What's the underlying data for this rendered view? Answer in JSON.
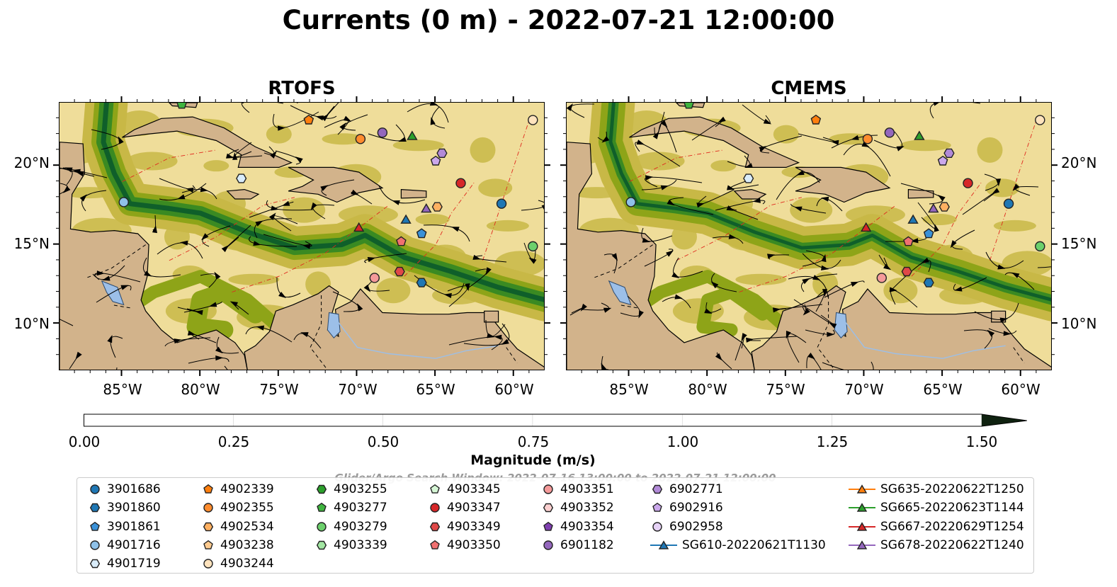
{
  "title": "Currents (0 m) - 2022-07-21 12:00:00",
  "panels": [
    {
      "title": "RTOFS"
    },
    {
      "title": "CMEMS"
    }
  ],
  "axes": {
    "x_ticks": [
      "85°W",
      "80°W",
      "75°W",
      "70°W",
      "65°W",
      "60°W"
    ],
    "y_ticks": [
      "20°N",
      "15°N",
      "10°N"
    ]
  },
  "chart_data": {
    "type": "map",
    "region": "Caribbean Sea",
    "lon_range": [
      -89,
      -58
    ],
    "lat_range": [
      7,
      24
    ],
    "fill_variable": "current speed",
    "overlays": [
      "streamlines",
      "bathymetry contours",
      "EEZ boundaries",
      "country borders"
    ]
  },
  "colorbar": {
    "label": "Magnitude (m/s)",
    "ticks": [
      "0.00",
      "0.25",
      "0.50",
      "0.75",
      "1.00",
      "1.25",
      "1.50"
    ],
    "colors": [
      "#efdd9a",
      "#c8b846",
      "#8ea418",
      "#3a8a22",
      "#0f5f2a",
      "#1c3a1e"
    ],
    "extend": "max"
  },
  "search_window": "Glider/Argo Search Window: 2022-07-16 13:00:00 to 2022-07-21 12:00:00",
  "legend": [
    {
      "label": "3901686",
      "marker": "circle",
      "color": "#1f77b4"
    },
    {
      "label": "3901860",
      "marker": "hexagon",
      "color": "#1f77b4"
    },
    {
      "label": "3901861",
      "marker": "pentagon",
      "color": "#3a91d8"
    },
    {
      "label": "4901716",
      "marker": "circle",
      "color": "#8fc1e8"
    },
    {
      "label": "4901719",
      "marker": "hexagon",
      "color": "#d9ecfa"
    },
    {
      "label": "4902339",
      "marker": "pentagon",
      "color": "#ff7f0e"
    },
    {
      "label": "4902355",
      "marker": "circle",
      "color": "#ff8c2e"
    },
    {
      "label": "4902534",
      "marker": "hexagon",
      "color": "#ffb061"
    },
    {
      "label": "4903238",
      "marker": "pentagon",
      "color": "#ffcb8f"
    },
    {
      "label": "4903244",
      "marker": "circle",
      "color": "#ffe3bd"
    },
    {
      "label": "4903255",
      "marker": "hexagon",
      "color": "#2ca02c"
    },
    {
      "label": "4903277",
      "marker": "pentagon",
      "color": "#3fb43f"
    },
    {
      "label": "4903279",
      "marker": "circle",
      "color": "#6cd06c"
    },
    {
      "label": "4903339",
      "marker": "hexagon",
      "color": "#a2e6a2"
    },
    {
      "label": "4903345",
      "marker": "pentagon",
      "color": "#d6f7d6"
    },
    {
      "label": "4903347",
      "marker": "circle",
      "color": "#d62728"
    },
    {
      "label": "4903349",
      "marker": "hexagon",
      "color": "#e04848"
    },
    {
      "label": "4903350",
      "marker": "pentagon",
      "color": "#f07070"
    },
    {
      "label": "4903351",
      "marker": "circle",
      "color": "#f59a9a"
    },
    {
      "label": "4903352",
      "marker": "hexagon",
      "color": "#fbd0d0"
    },
    {
      "label": "4903354",
      "marker": "pentagon",
      "color": "#7f3fb0"
    },
    {
      "label": "6901182",
      "marker": "circle",
      "color": "#9467bd"
    },
    {
      "label": "6902771",
      "marker": "hexagon",
      "color": "#b28ad8"
    },
    {
      "label": "6902916",
      "marker": "pentagon",
      "color": "#cba8ec"
    },
    {
      "label": "6902958",
      "marker": "circle",
      "color": "#e6d2f6"
    },
    {
      "label": "SG610-20220621T1130",
      "marker": "triangle",
      "color": "#1f77b4"
    },
    {
      "label": "SG635-20220622T1250",
      "marker": "triangle",
      "color": "#ff7f0e"
    },
    {
      "label": "SG665-20220623T1144",
      "marker": "triangle",
      "color": "#2ca02c"
    },
    {
      "label": "SG667-20220629T1254",
      "marker": "triangle",
      "color": "#d62728"
    },
    {
      "label": "SG678-20220622T1240",
      "marker": "triangle",
      "color": "#9467bd"
    }
  ]
}
